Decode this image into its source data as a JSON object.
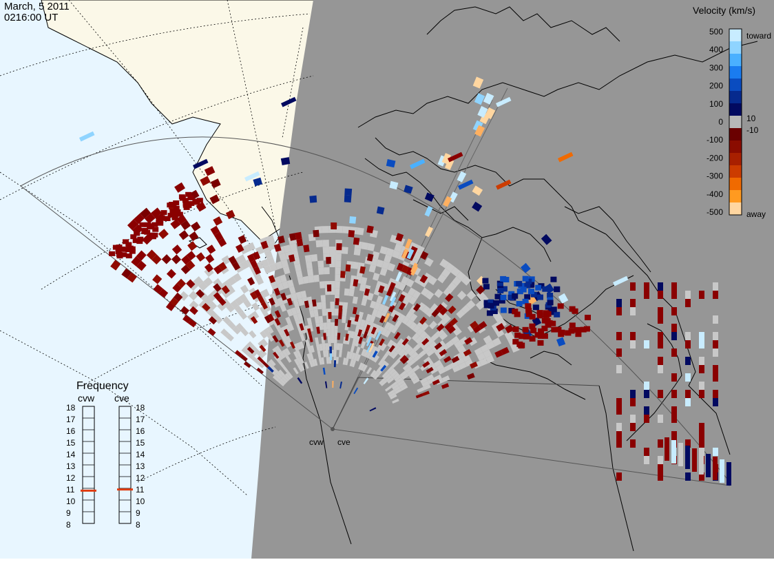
{
  "header": {
    "date": "March, 5 2011",
    "time": "0216:00 UT"
  },
  "legend": {
    "title": "Velocity (km/s)",
    "ticks": [
      "500",
      "400",
      "300",
      "200",
      "100",
      "0",
      "-100",
      "-200",
      "-300",
      "-400",
      "-500"
    ],
    "toward_label": "toward",
    "away_label": "away",
    "pos_threshold": "10",
    "neg_threshold": "-10",
    "colors": [
      "#c8ecff",
      "#8fd4ff",
      "#4ab0ff",
      "#1a7cf0",
      "#0a4cc0",
      "#062a8e",
      "#020a60",
      "#b8b8b8",
      "#6a0000",
      "#8a0c00",
      "#a82000",
      "#cc3c00",
      "#f06a00",
      "#ff9a20",
      "#ffd6a0"
    ]
  },
  "frequency": {
    "title": "Frequency",
    "stations": [
      "cvw",
      "cve"
    ],
    "scale": [
      "18",
      "17",
      "16",
      "15",
      "14",
      "13",
      "12",
      "11",
      "10",
      "9",
      "8"
    ],
    "cvw_mhz": 10.8,
    "cve_mhz": 10.9,
    "marker_color": "#e03c10"
  },
  "map": {
    "radars": [
      "cvw",
      "cve"
    ],
    "night_color": "#969696",
    "ocean_color": "#e8f6ff",
    "land_color": "#fbf8e8",
    "ground_scatter_color": "#c8c8c8"
  }
}
